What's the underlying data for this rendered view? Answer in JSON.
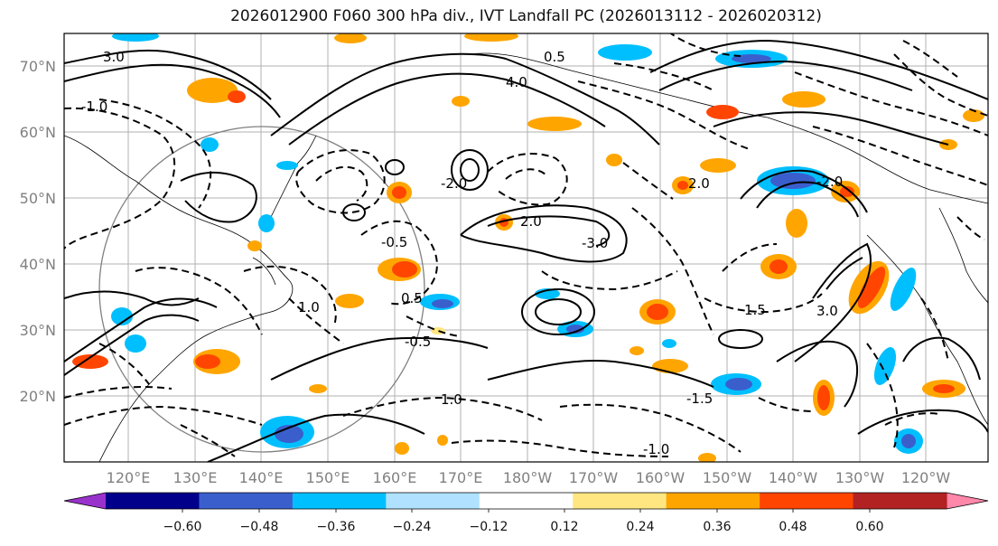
{
  "title": "2026012900 F060 300 hPa div., IVT Landfall PC (2026013112 - 2026020312)",
  "latitude_labels": [
    "70°N",
    "60°N",
    "50°N",
    "40°N",
    "30°N",
    "20°N"
  ],
  "longitude_labels": [
    "120°E",
    "130°E",
    "140°E",
    "150°E",
    "160°E",
    "170°E",
    "180°W",
    "170°W",
    "160°W",
    "150°W",
    "140°W",
    "130°W",
    "120°W"
  ],
  "contour_labels": [
    "3.0",
    "0.5",
    "-1.0",
    "-0.5",
    "2.0",
    "4.0",
    "1.0",
    "-2.0",
    "-3.0",
    "1.5",
    "-1.5",
    "0.5",
    "-0.5",
    "3.0",
    "1.0",
    "-1.0",
    "2.0",
    "-2.0"
  ],
  "colorbar": {
    "tick_labels": [
      "−0.60",
      "−0.48",
      "−0.36",
      "−0.24",
      "−0.12",
      "0.12",
      "0.24",
      "0.36",
      "0.48",
      "0.60"
    ],
    "colors": [
      "#9932cc",
      "#00008b",
      "#3a5fcd",
      "#00bfff",
      "#b0e2ff",
      "#ffffff",
      "#ffe680",
      "#ffa500",
      "#ff4500",
      "#b22222",
      "#ff88aa"
    ]
  },
  "fill_colors": {
    "blue_dark": "#3a5fcd",
    "blue": "#00bfff",
    "blue_light": "#b0e2ff",
    "yellow": "#ffe680",
    "orange": "#ffa500",
    "red_orange": "#ff4500",
    "dark_red": "#b22222"
  }
}
